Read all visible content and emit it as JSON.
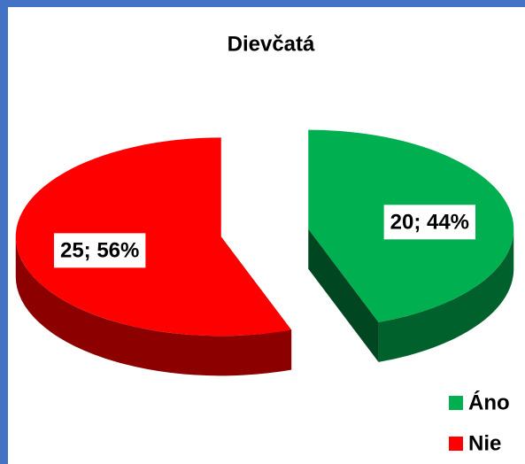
{
  "chart_data": {
    "type": "pie3d",
    "title": "Dievčatá",
    "categories": [
      "Áno",
      "Nie"
    ],
    "values": [
      20,
      25
    ],
    "value_labels": [
      "20; 44%",
      "25; 56%"
    ],
    "colors": [
      "#00b050",
      "#ff0000"
    ],
    "legend": "bottom-right"
  }
}
